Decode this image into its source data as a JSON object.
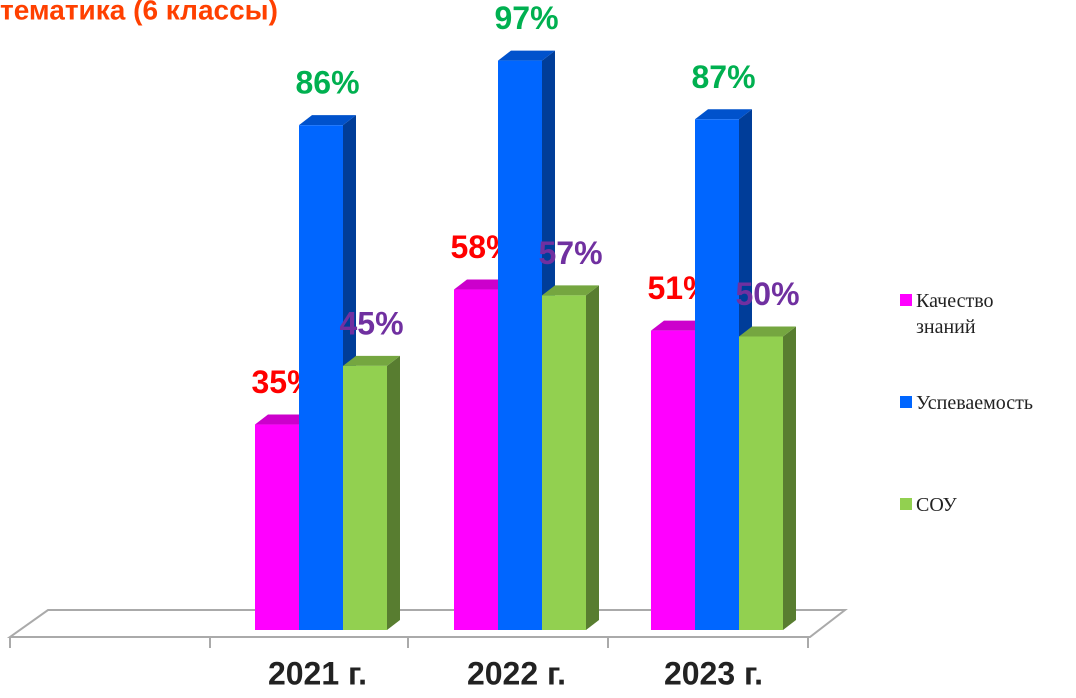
{
  "chart_data": {
    "type": "bar3d",
    "title": "тематика (6 классы)",
    "categories": [
      "2021 г.",
      "2022 г.",
      "2023 г."
    ],
    "ylim": [
      0,
      100
    ],
    "series": [
      {
        "name": "Качество знаний",
        "color": "#ff00ff",
        "label_color": "#ff0000",
        "values": [
          35,
          58,
          51
        ],
        "value_labels": [
          "35%",
          "58%",
          "51%"
        ]
      },
      {
        "name": "Успеваемость",
        "color": "#0066ff",
        "label_color": "#00b050",
        "values": [
          86,
          97,
          87
        ],
        "value_labels": [
          "86%",
          "97%",
          "87%"
        ]
      },
      {
        "name": "СОУ",
        "color": "#92d050",
        "label_color": "#7030a0",
        "values": [
          45,
          57,
          50
        ],
        "value_labels": [
          "45%",
          "57%",
          "50%"
        ]
      }
    ],
    "legend": "right"
  }
}
